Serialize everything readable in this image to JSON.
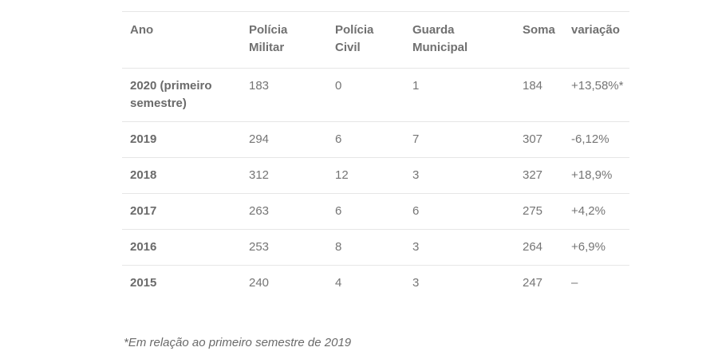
{
  "table": {
    "headers": {
      "ano": "Ano",
      "pm": "Polícia Militar",
      "pc": "Polícia Civil",
      "gm": "Guarda Municipal",
      "soma": "Soma",
      "variacao": "variação"
    },
    "rows": [
      {
        "ano": "2020 (primeiro semestre)",
        "pm": "183",
        "pc": "0",
        "gm": "1",
        "soma": "184",
        "variacao": "+13,58%*"
      },
      {
        "ano": "2019",
        "pm": "294",
        "pc": "6",
        "gm": "7",
        "soma": "307",
        "variacao": "-6,12%"
      },
      {
        "ano": "2018",
        "pm": "312",
        "pc": "12",
        "gm": "3",
        "soma": "327",
        "variacao": "+18,9%"
      },
      {
        "ano": "2017",
        "pm": "263",
        "pc": "6",
        "gm": "6",
        "soma": "275",
        "variacao": "+4,2%"
      },
      {
        "ano": "2016",
        "pm": "253",
        "pc": "8",
        "gm": "3",
        "soma": "264",
        "variacao": "+6,9%"
      },
      {
        "ano": "2015",
        "pm": "240",
        "pc": "4",
        "gm": "3",
        "soma": "247",
        "variacao": "–"
      }
    ]
  },
  "footnote": "*Em relação ao primeiro semestre de 2019"
}
